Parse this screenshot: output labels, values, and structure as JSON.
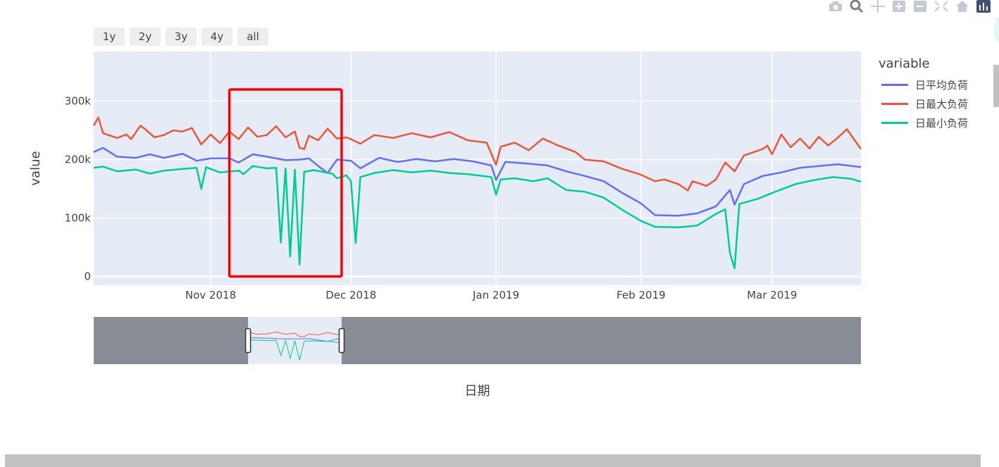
{
  "modebar": {
    "buttons": [
      "camera-icon",
      "zoom-icon",
      "pan-icon",
      "zoom-in-icon",
      "zoom-out-icon",
      "autoscale-icon",
      "home-icon",
      "plotly-logo-icon"
    ]
  },
  "range_selector": {
    "buttons": [
      "1y",
      "2y",
      "3y",
      "4y",
      "all"
    ]
  },
  "legend": {
    "title": "variable"
  },
  "colors": {
    "plot_bg": "#e5ecf6",
    "avg": "#636efa",
    "max": "#ef553b",
    "min": "#00cc96",
    "annotation": "#ff0000",
    "slider_mask": "#888c94"
  },
  "chart_data": {
    "type": "line",
    "title": "",
    "xlabel": "日期",
    "ylabel": "value",
    "x_range": [
      "2018-10-07",
      "2019-03-20"
    ],
    "ylim": [
      -15000,
      385000
    ],
    "x_ticks": [
      {
        "date": "2018-11-01",
        "label": "Nov 2018"
      },
      {
        "date": "2018-12-01",
        "label": "Dec 2018"
      },
      {
        "date": "2019-01-01",
        "label": "Jan 2019"
      },
      {
        "date": "2019-02-01",
        "label": "Feb 2019"
      },
      {
        "date": "2019-03-01",
        "label": "Mar 2019"
      }
    ],
    "y_ticks": [
      {
        "value": 0,
        "label": "0"
      },
      {
        "value": 100000,
        "label": "100k"
      },
      {
        "value": 200000,
        "label": "200k"
      },
      {
        "value": 300000,
        "label": "300k"
      }
    ],
    "grid": true,
    "legend_position": "right",
    "series": [
      {
        "name": "日平均负荷",
        "color": "#636efa",
        "points": [
          [
            "2018-10-07",
            213000
          ],
          [
            "2018-10-09",
            220000
          ],
          [
            "2018-10-12",
            205000
          ],
          [
            "2018-10-16",
            203000
          ],
          [
            "2018-10-19",
            209000
          ],
          [
            "2018-10-22",
            203000
          ],
          [
            "2018-10-26",
            210000
          ],
          [
            "2018-10-29",
            198000
          ],
          [
            "2018-11-01",
            202000
          ],
          [
            "2018-11-05",
            202000
          ],
          [
            "2018-11-07",
            195000
          ],
          [
            "2018-11-10",
            209000
          ],
          [
            "2018-11-13",
            205000
          ],
          [
            "2018-11-17",
            199000
          ],
          [
            "2018-11-20",
            200000
          ],
          [
            "2018-11-22",
            202000
          ],
          [
            "2018-11-24",
            189000
          ],
          [
            "2018-11-26",
            177000
          ],
          [
            "2018-11-28",
            200000
          ],
          [
            "2018-12-01",
            198000
          ],
          [
            "2018-12-03",
            185000
          ],
          [
            "2018-12-07",
            203000
          ],
          [
            "2018-12-11",
            196000
          ],
          [
            "2018-12-15",
            201000
          ],
          [
            "2018-12-19",
            197000
          ],
          [
            "2018-12-23",
            201000
          ],
          [
            "2018-12-27",
            197000
          ],
          [
            "2018-12-31",
            190000
          ],
          [
            "2019-01-01",
            165000
          ],
          [
            "2019-01-03",
            196000
          ],
          [
            "2019-01-08",
            193000
          ],
          [
            "2019-01-12",
            190000
          ],
          [
            "2019-01-16",
            180000
          ],
          [
            "2019-01-20",
            172000
          ],
          [
            "2019-01-24",
            163000
          ],
          [
            "2019-01-28",
            143000
          ],
          [
            "2019-02-01",
            125000
          ],
          [
            "2019-02-04",
            105000
          ],
          [
            "2019-02-09",
            104000
          ],
          [
            "2019-02-13",
            108000
          ],
          [
            "2019-02-17",
            120000
          ],
          [
            "2019-02-20",
            148000
          ],
          [
            "2019-02-21",
            123000
          ],
          [
            "2019-02-23",
            158000
          ],
          [
            "2019-02-27",
            172000
          ],
          [
            "2019-03-03",
            178000
          ],
          [
            "2019-03-07",
            186000
          ],
          [
            "2019-03-11",
            189000
          ],
          [
            "2019-03-15",
            192000
          ],
          [
            "2019-03-20",
            187000
          ]
        ]
      },
      {
        "name": "日最大负荷",
        "color": "#ef553b",
        "points": [
          [
            "2018-10-07",
            258000
          ],
          [
            "2018-10-08",
            272000
          ],
          [
            "2018-10-09",
            245000
          ],
          [
            "2018-10-12",
            237000
          ],
          [
            "2018-10-14",
            243000
          ],
          [
            "2018-10-15",
            235000
          ],
          [
            "2018-10-17",
            258000
          ],
          [
            "2018-10-18",
            252000
          ],
          [
            "2018-10-20",
            238000
          ],
          [
            "2018-10-22",
            242000
          ],
          [
            "2018-10-24",
            250000
          ],
          [
            "2018-10-26",
            248000
          ],
          [
            "2018-10-28",
            254000
          ],
          [
            "2018-10-30",
            226000
          ],
          [
            "2018-11-01",
            243000
          ],
          [
            "2018-11-03",
            228000
          ],
          [
            "2018-11-05",
            248000
          ],
          [
            "2018-11-07",
            235000
          ],
          [
            "2018-11-09",
            255000
          ],
          [
            "2018-11-11",
            239000
          ],
          [
            "2018-11-13",
            242000
          ],
          [
            "2018-11-15",
            257000
          ],
          [
            "2018-11-17",
            238000
          ],
          [
            "2018-11-19",
            248000
          ],
          [
            "2018-11-20",
            220000
          ],
          [
            "2018-11-21",
            218000
          ],
          [
            "2018-11-22",
            241000
          ],
          [
            "2018-11-24",
            233000
          ],
          [
            "2018-11-26",
            253000
          ],
          [
            "2018-11-28",
            236000
          ],
          [
            "2018-11-30",
            238000
          ],
          [
            "2018-12-01",
            235000
          ],
          [
            "2018-12-03",
            227000
          ],
          [
            "2018-12-06",
            242000
          ],
          [
            "2018-12-10",
            237000
          ],
          [
            "2018-12-14",
            245000
          ],
          [
            "2018-12-18",
            238000
          ],
          [
            "2018-12-22",
            247000
          ],
          [
            "2018-12-26",
            233000
          ],
          [
            "2018-12-30",
            229000
          ],
          [
            "2019-01-01",
            191000
          ],
          [
            "2019-01-02",
            222000
          ],
          [
            "2019-01-05",
            229000
          ],
          [
            "2019-01-08",
            216000
          ],
          [
            "2019-01-11",
            236000
          ],
          [
            "2019-01-14",
            225000
          ],
          [
            "2019-01-18",
            213000
          ],
          [
            "2019-01-20",
            200000
          ],
          [
            "2019-01-24",
            197000
          ],
          [
            "2019-01-28",
            184000
          ],
          [
            "2019-02-01",
            174000
          ],
          [
            "2019-02-04",
            163000
          ],
          [
            "2019-02-06",
            166000
          ],
          [
            "2019-02-09",
            158000
          ],
          [
            "2019-02-11",
            147000
          ],
          [
            "2019-02-12",
            163000
          ],
          [
            "2019-02-15",
            155000
          ],
          [
            "2019-02-17",
            166000
          ],
          [
            "2019-02-19",
            195000
          ],
          [
            "2019-02-21",
            180000
          ],
          [
            "2019-02-23",
            207000
          ],
          [
            "2019-02-27",
            218000
          ],
          [
            "2019-02-28",
            224000
          ],
          [
            "2019-03-01",
            209000
          ],
          [
            "2019-03-03",
            243000
          ],
          [
            "2019-03-05",
            221000
          ],
          [
            "2019-03-07",
            236000
          ],
          [
            "2019-03-09",
            219000
          ],
          [
            "2019-03-11",
            239000
          ],
          [
            "2019-03-13",
            224000
          ],
          [
            "2019-03-15",
            237000
          ],
          [
            "2019-03-17",
            252000
          ],
          [
            "2019-03-20",
            218000
          ]
        ]
      },
      {
        "name": "日最小负荷",
        "color": "#00cc96",
        "points": [
          [
            "2018-10-07",
            186000
          ],
          [
            "2018-10-09",
            188000
          ],
          [
            "2018-10-12",
            180000
          ],
          [
            "2018-10-16",
            183000
          ],
          [
            "2018-10-19",
            176000
          ],
          [
            "2018-10-22",
            181000
          ],
          [
            "2018-10-26",
            184000
          ],
          [
            "2018-10-29",
            186000
          ],
          [
            "2018-10-30",
            150000
          ],
          [
            "2018-10-31",
            187000
          ],
          [
            "2018-11-03",
            178000
          ],
          [
            "2018-11-07",
            181000
          ],
          [
            "2018-11-08",
            175000
          ],
          [
            "2018-11-10",
            189000
          ],
          [
            "2018-11-13",
            185000
          ],
          [
            "2018-11-15",
            186000
          ],
          [
            "2018-11-16",
            58000
          ],
          [
            "2018-11-17",
            185000
          ],
          [
            "2018-11-18",
            34000
          ],
          [
            "2018-11-19",
            183000
          ],
          [
            "2018-11-20",
            20000
          ],
          [
            "2018-11-21",
            179000
          ],
          [
            "2018-11-23",
            182000
          ],
          [
            "2018-11-27",
            176000
          ],
          [
            "2018-11-28",
            168000
          ],
          [
            "2018-11-30",
            173000
          ],
          [
            "2018-12-01",
            163000
          ],
          [
            "2018-12-02",
            57000
          ],
          [
            "2018-12-03",
            170000
          ],
          [
            "2018-12-06",
            177000
          ],
          [
            "2018-12-10",
            182000
          ],
          [
            "2018-12-14",
            178000
          ],
          [
            "2018-12-18",
            181000
          ],
          [
            "2018-12-22",
            177000
          ],
          [
            "2018-12-26",
            175000
          ],
          [
            "2018-12-31",
            170000
          ],
          [
            "2019-01-01",
            140000
          ],
          [
            "2019-01-02",
            166000
          ],
          [
            "2019-01-05",
            168000
          ],
          [
            "2019-01-09",
            163000
          ],
          [
            "2019-01-12",
            168000
          ],
          [
            "2019-01-16",
            148000
          ],
          [
            "2019-01-20",
            145000
          ],
          [
            "2019-01-24",
            135000
          ],
          [
            "2019-01-28",
            114000
          ],
          [
            "2019-02-01",
            95000
          ],
          [
            "2019-02-04",
            85000
          ],
          [
            "2019-02-09",
            84000
          ],
          [
            "2019-02-13",
            87000
          ],
          [
            "2019-02-17",
            107000
          ],
          [
            "2019-02-19",
            115000
          ],
          [
            "2019-02-20",
            40000
          ],
          [
            "2019-02-21",
            14000
          ],
          [
            "2019-02-22",
            124000
          ],
          [
            "2019-02-26",
            133000
          ],
          [
            "2019-03-02",
            146000
          ],
          [
            "2019-03-06",
            158000
          ],
          [
            "2019-03-10",
            165000
          ],
          [
            "2019-03-14",
            170000
          ],
          [
            "2019-03-18",
            167000
          ],
          [
            "2019-03-20",
            162000
          ]
        ]
      }
    ],
    "annotation_box": {
      "x0": "2018-11-05",
      "x1": "2018-11-29",
      "y0": 0,
      "y1": 320000
    },
    "range_slider_window": {
      "start": "2018-11-09",
      "end": "2018-11-29"
    }
  }
}
